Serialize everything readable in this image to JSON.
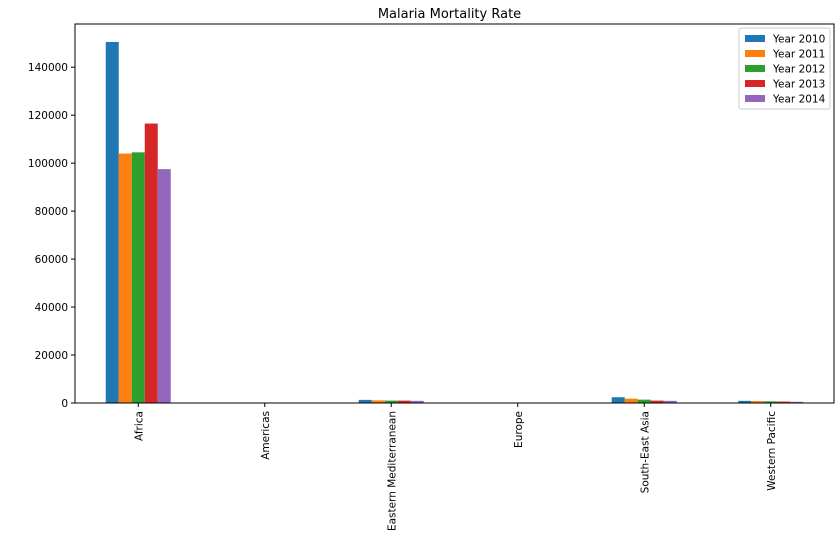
{
  "chart_data": {
    "type": "bar",
    "title": "Malaria Mortality Rate",
    "categories": [
      "Africa",
      "Americas",
      "Eastern Mediterranean",
      "Europe",
      "South-East Asia",
      "Western Pacific"
    ],
    "series": [
      {
        "name": "Year 2010",
        "color": "#1f77b4",
        "values": [
          150500,
          200,
          1300,
          0,
          2400,
          900
        ]
      },
      {
        "name": "Year 2011",
        "color": "#ff7f0e",
        "values": [
          104000,
          180,
          1100,
          0,
          1800,
          800
        ]
      },
      {
        "name": "Year 2012",
        "color": "#2ca02c",
        "values": [
          104500,
          160,
          1000,
          0,
          1400,
          700
        ]
      },
      {
        "name": "Year 2013",
        "color": "#d62728",
        "values": [
          116500,
          150,
          1000,
          0,
          1000,
          600
        ]
      },
      {
        "name": "Year 2014",
        "color": "#9467bd",
        "values": [
          97500,
          140,
          900,
          0,
          900,
          500
        ]
      }
    ],
    "xlabel": "",
    "ylabel": "",
    "ylim": [
      0,
      158000
    ],
    "yticks": [
      0,
      20000,
      40000,
      60000,
      80000,
      100000,
      120000,
      140000
    ],
    "ytick_labels": [
      "0",
      "20000",
      "40000",
      "60000",
      "80000",
      "100000",
      "120000",
      "140000"
    ],
    "grid": false,
    "legend_position": "top-right"
  }
}
